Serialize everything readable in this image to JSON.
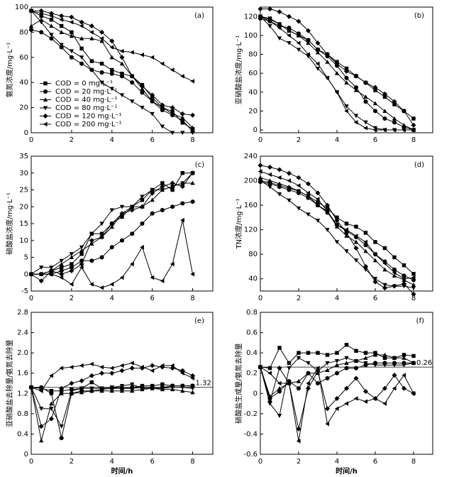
{
  "chart_data": [
    {
      "type": "line",
      "panel_label": "(a)",
      "y_label": "氨氮浓度/mg·L⁻¹",
      "color": "#000000",
      "x": [
        0,
        0.5,
        1,
        1.5,
        2,
        2.5,
        3,
        3.5,
        4,
        4.5,
        5,
        5.5,
        6,
        6.5,
        7,
        7.5,
        8
      ],
      "xlim": [
        0,
        9
      ],
      "xticks": [
        0,
        2,
        4,
        6,
        8
      ],
      "ylim": [
        0,
        100
      ],
      "yticks": [
        0,
        20,
        40,
        60,
        80,
        100
      ],
      "legend": "lower-left",
      "series": [
        {
          "name": "COD = 0 mg·L⁻¹",
          "marker": "square",
          "values": [
            97,
            93,
            90,
            85,
            80,
            67,
            57,
            55,
            50,
            47,
            45,
            38,
            28,
            20,
            17,
            8,
            3
          ]
        },
        {
          "name": "COD = 20 mg·L⁻¹",
          "marker": "circle",
          "values": [
            82,
            80,
            75,
            68,
            60,
            55,
            50,
            48,
            47,
            45,
            40,
            32,
            25,
            18,
            14,
            10,
            1
          ]
        },
        {
          "name": "COD = 40 mg·L⁻¹",
          "marker": "triangle-up",
          "values": [
            85,
            90,
            85,
            80,
            77,
            75,
            75,
            73,
            60,
            55,
            45,
            35,
            25,
            20,
            15,
            12,
            4
          ]
        },
        {
          "name": "COD = 80 mg·L⁻¹",
          "marker": "triangle-down",
          "values": [
            97,
            88,
            78,
            70,
            65,
            60,
            50,
            40,
            35,
            30,
            25,
            20,
            15,
            5,
            0,
            0,
            0
          ]
        },
        {
          "name": "COD = 120 mg·L⁻¹",
          "marker": "diamond",
          "values": [
            97,
            97,
            95,
            93,
            92,
            88,
            85,
            80,
            73,
            60,
            45,
            37,
            30,
            22,
            20,
            15,
            14
          ]
        },
        {
          "name": "COD = 200 mg·L⁻¹",
          "marker": "triangle-left",
          "values": [
            97,
            95,
            93,
            90,
            88,
            85,
            80,
            75,
            68,
            65,
            64,
            62,
            60,
            55,
            50,
            45,
            41
          ]
        }
      ]
    },
    {
      "type": "line",
      "panel_label": "(b)",
      "y_label": "亚硝酸盐浓度/mg·L⁻¹",
      "color": "#000000",
      "x": [
        0,
        0.5,
        1,
        1.5,
        2,
        2.5,
        3,
        3.5,
        4,
        4.5,
        5,
        5.5,
        6,
        6.5,
        7,
        7.5,
        8
      ],
      "xlim": [
        0,
        9
      ],
      "xticks": [
        0,
        2,
        4,
        6,
        8
      ],
      "ylim": [
        -3,
        130
      ],
      "yticks": [
        0,
        20,
        40,
        60,
        80,
        100,
        120
      ],
      "series": [
        {
          "marker": "square",
          "values": [
            120,
            118,
            112,
            105,
            100,
            95,
            85,
            80,
            72,
            65,
            57,
            50,
            42,
            35,
            27,
            20,
            12
          ]
        },
        {
          "marker": "circle",
          "values": [
            118,
            115,
            110,
            108,
            102,
            95,
            85,
            78,
            68,
            55,
            45,
            30,
            20,
            12,
            8,
            3,
            0
          ]
        },
        {
          "marker": "triangle-up",
          "values": [
            120,
            117,
            112,
            105,
            100,
            92,
            82,
            72,
            60,
            50,
            42,
            35,
            28,
            20,
            12,
            5,
            0
          ]
        },
        {
          "marker": "triangle-down",
          "values": [
            120,
            110,
            97,
            92,
            85,
            78,
            65,
            55,
            40,
            25,
            15,
            8,
            2,
            0,
            0,
            0,
            0
          ]
        },
        {
          "marker": "diamond",
          "values": [
            128,
            128,
            125,
            120,
            115,
            105,
            92,
            80,
            70,
            62,
            57,
            50,
            45,
            38,
            30,
            20,
            5
          ]
        },
        {
          "marker": "triangle-left",
          "values": [
            120,
            115,
            108,
            100,
            92,
            80,
            70,
            55,
            40,
            20,
            8,
            2,
            0,
            0,
            0,
            0,
            0
          ]
        }
      ]
    },
    {
      "type": "line",
      "panel_label": "(c)",
      "y_label": "硝酸盐浓度/mg·L⁻¹",
      "color": "#000000",
      "x": [
        0,
        0.5,
        1,
        1.5,
        2,
        2.5,
        3,
        3.5,
        4,
        4.5,
        5,
        5.5,
        6,
        6.5,
        7,
        7.5,
        8
      ],
      "xlim": [
        0,
        9
      ],
      "xticks": [
        0,
        2,
        4,
        6,
        8
      ],
      "ylim": [
        -5,
        35
      ],
      "yticks": [
        -5,
        0,
        5,
        10,
        15,
        20,
        25,
        30,
        35
      ],
      "series": [
        {
          "marker": "square",
          "values": [
            0,
            0,
            1,
            2,
            3,
            6,
            12,
            12,
            15,
            17,
            20,
            22,
            25,
            27,
            25,
            30,
            30
          ]
        },
        {
          "marker": "circle",
          "values": [
            0,
            0,
            0,
            1,
            2,
            4,
            4,
            5,
            8,
            10,
            12,
            15,
            18,
            19,
            20,
            21,
            21.5
          ]
        },
        {
          "marker": "triangle-up",
          "values": [
            0,
            0,
            1,
            3,
            5,
            7,
            9,
            11,
            14,
            18,
            20,
            20,
            22,
            25,
            26,
            27,
            27
          ]
        },
        {
          "marker": "triangle-down",
          "values": [
            0,
            2,
            2,
            4,
            6,
            8,
            12,
            15,
            19,
            20,
            20,
            23,
            25,
            25,
            26,
            27,
            30
          ]
        },
        {
          "marker": "diamond",
          "values": [
            0,
            -2,
            1,
            0,
            1,
            3,
            10,
            11,
            15,
            18,
            19,
            20,
            24,
            26,
            27,
            26,
            30
          ]
        },
        {
          "marker": "triangle-left",
          "values": [
            0,
            0,
            0,
            -1,
            -3,
            2,
            -3,
            -4,
            -3,
            -1,
            3,
            8,
            -1,
            -2,
            3,
            16,
            0
          ]
        }
      ]
    },
    {
      "type": "line",
      "panel_label": "(d)",
      "y_label": "TN浓度/mg·L⁻¹",
      "color": "#000000",
      "x": [
        0,
        0.5,
        1,
        1.5,
        2,
        2.5,
        3,
        3.5,
        4,
        4.5,
        5,
        5.5,
        6,
        6.5,
        7,
        7.5,
        8
      ],
      "xlim": [
        0,
        9
      ],
      "xticks": [
        0,
        2,
        4,
        6,
        8
      ],
      "ylim": [
        20,
        240
      ],
      "yticks": [
        40,
        80,
        120,
        160,
        200,
        240
      ],
      "series": [
        {
          "marker": "square",
          "values": [
            200,
            197,
            192,
            188,
            183,
            175,
            165,
            155,
            140,
            130,
            125,
            115,
            100,
            90,
            75,
            62,
            48
          ]
        },
        {
          "marker": "circle",
          "values": [
            198,
            195,
            190,
            185,
            180,
            172,
            160,
            148,
            128,
            118,
            108,
            95,
            80,
            68,
            55,
            45,
            38
          ]
        },
        {
          "marker": "triangle-up",
          "values": [
            205,
            200,
            195,
            190,
            183,
            175,
            160,
            150,
            125,
            110,
            100,
            85,
            70,
            55,
            45,
            38,
            30
          ]
        },
        {
          "marker": "triangle-down",
          "values": [
            200,
            190,
            178,
            168,
            155,
            145,
            135,
            120,
            100,
            85,
            70,
            55,
            40,
            30,
            28,
            28,
            25
          ]
        },
        {
          "marker": "diamond",
          "values": [
            225,
            222,
            218,
            212,
            205,
            195,
            180,
            160,
            135,
            115,
            90,
            60,
            35,
            25,
            28,
            32,
            15
          ]
        },
        {
          "marker": "triangle-left",
          "values": [
            215,
            210,
            205,
            200,
            192,
            180,
            170,
            150,
            128,
            120,
            110,
            100,
            80,
            65,
            50,
            40,
            42
          ]
        }
      ]
    },
    {
      "type": "line",
      "panel_label": "(e)",
      "y_label": "亚硝酸盐去除量/氨氮去除量",
      "x_label": "时间/h",
      "color": "#000000",
      "x": [
        0,
        0.5,
        1,
        1.5,
        2,
        2.5,
        3,
        3.5,
        4,
        4.5,
        5,
        5.5,
        6,
        6.5,
        7,
        7.5,
        8
      ],
      "xlim": [
        0,
        9
      ],
      "xticks": [
        0,
        2,
        4,
        6,
        8
      ],
      "ylim": [
        0,
        2.8
      ],
      "yticks": [
        0,
        0.4,
        0.8,
        1.2,
        1.6,
        {
          "value": 2,
          "label": "2.0"
        },
        2.4,
        2.8
      ],
      "reference_line": 1.32,
      "series": [
        {
          "marker": "square",
          "values": [
            1.32,
            1.3,
            1.25,
            1.25,
            1.28,
            1.3,
            1.42,
            1.3,
            1.32,
            1.3,
            1.32,
            1.35,
            1.35,
            1.38,
            1.35,
            1.35,
            1.35
          ]
        },
        {
          "marker": "circle",
          "values": [
            1.32,
            1.32,
            1.2,
            0.32,
            1.2,
            1.25,
            1.25,
            1.28,
            1.3,
            1.3,
            1.3,
            1.32,
            1.32,
            1.32,
            1.35,
            1.35,
            1.35
          ]
        },
        {
          "marker": "triangle-up",
          "values": [
            1.32,
            0.27,
            1.0,
            1.2,
            1.2,
            1.22,
            1.25,
            1.25,
            1.25,
            1.25,
            1.25,
            1.28,
            1.3,
            1.28,
            1.28,
            1.25,
            1.22
          ]
        },
        {
          "marker": "triangle-down",
          "values": [
            1.32,
            0.9,
            0.9,
            0.55,
            1.25,
            1.3,
            1.3,
            1.3,
            1.32,
            1.35,
            1.38,
            1.3,
            1.3,
            1.3,
            1.32,
            1.32,
            1.3
          ]
        },
        {
          "marker": "diamond",
          "values": [
            1.32,
            0.55,
            0.7,
            1.3,
            1.4,
            1.45,
            1.55,
            1.6,
            1.6,
            1.65,
            1.7,
            1.7,
            1.75,
            1.72,
            1.7,
            1.65,
            1.55
          ]
        },
        {
          "marker": "triangle-left",
          "values": [
            1.32,
            1.25,
            1.55,
            1.7,
            1.72,
            1.75,
            1.78,
            1.72,
            1.7,
            1.75,
            1.8,
            1.72,
            1.65,
            1.75,
            1.75,
            1.6,
            1.5
          ]
        }
      ]
    },
    {
      "type": "line",
      "panel_label": "(f)",
      "y_label": "硝酸盐生成量/氨氮去除量",
      "x_label": "时间/h",
      "color": "#000000",
      "x": [
        0,
        0.5,
        1,
        1.5,
        2,
        2.5,
        3,
        3.5,
        4,
        4.5,
        5,
        5.5,
        6,
        6.5,
        7,
        7.5,
        8
      ],
      "xlim": [
        0,
        9
      ],
      "xticks": [
        0,
        2,
        4,
        6,
        8
      ],
      "ylim": [
        -0.6,
        0.8
      ],
      "yticks": [
        -0.6,
        -0.4,
        -0.2,
        0,
        0.2,
        0.4,
        0.6,
        0.8
      ],
      "reference_line": 0.26,
      "series": [
        {
          "marker": "square",
          "values": [
            0.26,
            0.25,
            0.45,
            0.3,
            0.4,
            0.4,
            0.4,
            0.38,
            0.4,
            0.48,
            0.42,
            0.4,
            0.4,
            0.35,
            0.35,
            0.38,
            0.37
          ]
        },
        {
          "marker": "circle",
          "values": [
            0.26,
            -0.05,
            0.02,
            0.12,
            0.05,
            0.2,
            0.1,
            0.15,
            0.2,
            0.25,
            0.25,
            0.28,
            0.3,
            0.3,
            0.3,
            0.3,
            0.3
          ]
        },
        {
          "marker": "triangle-up",
          "values": [
            0.26,
            -0.03,
            0.05,
            0.1,
            0.12,
            0.2,
            0.2,
            0.23,
            0.28,
            0.3,
            0.32,
            0.35,
            0.38,
            0.38,
            0.35,
            0.35,
            0.3
          ]
        },
        {
          "marker": "triangle-down",
          "values": [
            0.26,
            -0.1,
            -0.22,
            0.25,
            0.35,
            0.3,
            0.22,
            0.3,
            0.32,
            0.35,
            0.32,
            0.3,
            0.28,
            0.28,
            0.28,
            0.28,
            0.3
          ]
        },
        {
          "marker": "diamond",
          "values": [
            0.26,
            -0.08,
            0.25,
            0.1,
            -0.35,
            0.05,
            0.22,
            -0.15,
            -0.05,
            0.05,
            0.15,
            0.02,
            -0.05,
            0.05,
            0.18,
            0.05,
            0
          ]
        },
        {
          "marker": "triangle-left",
          "values": [
            0.26,
            0.2,
            0.1,
            0.1,
            -0.47,
            0.1,
            0.25,
            -0.3,
            -0.15,
            -0.1,
            -0.05,
            -0.08,
            -0.05,
            -0.1,
            0.05,
            0.18,
            0
          ]
        }
      ]
    }
  ]
}
